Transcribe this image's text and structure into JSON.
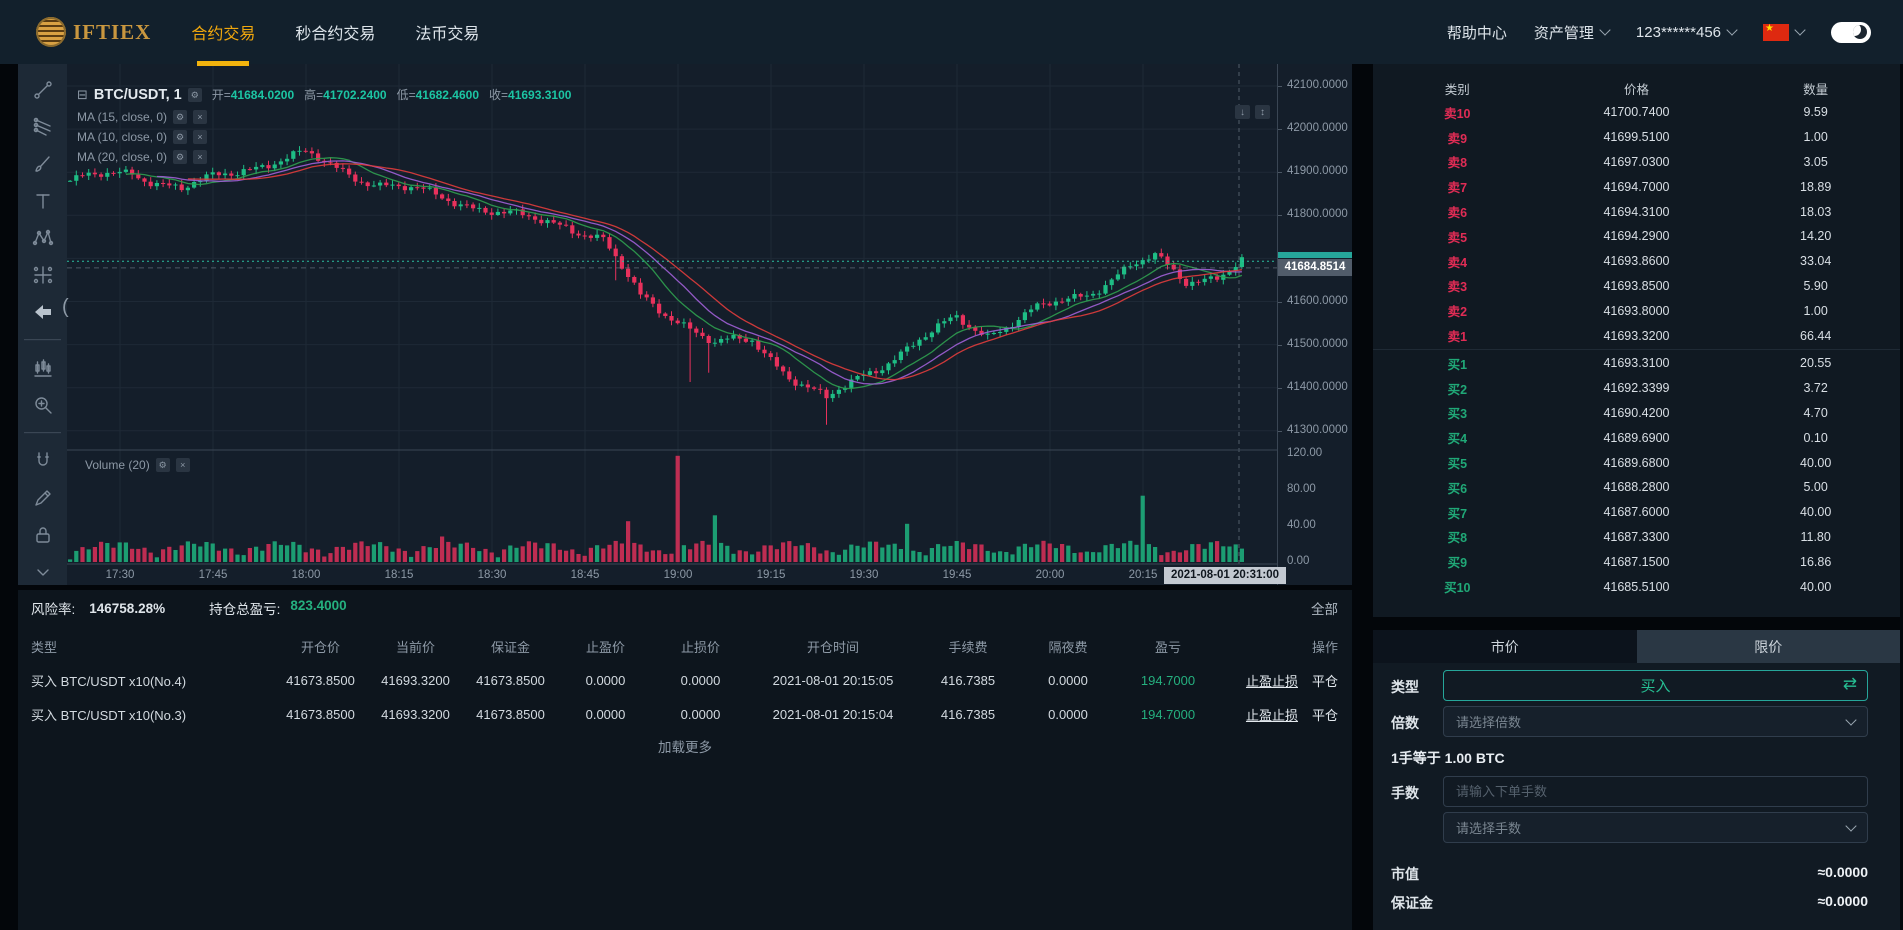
{
  "navbar": {
    "logo_text": "IFTIEX",
    "menu": [
      {
        "label": "合约交易",
        "active": true
      },
      {
        "label": "秒合约交易",
        "active": false
      },
      {
        "label": "法币交易",
        "active": false
      }
    ],
    "help": "帮助中心",
    "assets": "资产管理",
    "account": "123******456",
    "accent_color": "#f0a70d"
  },
  "toolbar": {
    "icons": [
      {
        "icon": "trend-line",
        "divider": false
      },
      {
        "icon": "gann-fib",
        "divider": false
      },
      {
        "icon": "brush",
        "divider": false
      },
      {
        "icon": "text-tool",
        "divider": false
      },
      {
        "icon": "xabcd-pattern",
        "divider": false
      },
      {
        "icon": "forecast",
        "divider": false
      },
      {
        "icon": "arrow-left",
        "active": true,
        "divider": true
      },
      {
        "icon": "bar-pattern",
        "divider": false
      },
      {
        "icon": "zoom-in",
        "divider": true
      },
      {
        "icon": "magnet",
        "divider": false
      },
      {
        "icon": "pencil",
        "divider": false
      },
      {
        "icon": "lock",
        "divider": false
      },
      {
        "icon": "chevron-down",
        "divider": false
      }
    ]
  },
  "chart": {
    "collapse_glyph": "⊟",
    "symbol_title": "BTC/USDT, 1",
    "ohlc": [
      {
        "label": "开=",
        "value": "41684.0200"
      },
      {
        "label": "高=",
        "value": "41702.2400"
      },
      {
        "label": "低=",
        "value": "41682.4600"
      },
      {
        "label": "收=",
        "value": "41693.3100"
      }
    ],
    "indicators": [
      "MA (15, close, 0)",
      "MA (10, close, 0)",
      "MA (20, close, 0)"
    ],
    "volume_label": "Volume (20)",
    "price_axis": [
      "42100.0000",
      "42000.0000",
      "41900.0000",
      "41800.0000",
      "41600.0000",
      "41500.0000",
      "41400.0000",
      "41300.0000"
    ],
    "price_tag": "41684.8514",
    "volume_axis": [
      "120.00",
      "80.00",
      "40.00",
      "0.00"
    ],
    "time_axis": [
      "17:30",
      "17:45",
      "18:00",
      "18:15",
      "18:30",
      "18:45",
      "19:00",
      "19:15",
      "19:30",
      "19:45",
      "20:00",
      "20:15"
    ],
    "time_tag": "2021-08-01 20:31:00"
  },
  "chart_data": {
    "type": "candlestick",
    "symbol": "BTC/USDT",
    "interval_minutes": 1,
    "visible_range": [
      "17:22",
      "20:40"
    ],
    "ohlc_current": {
      "open": 41684.02,
      "high": 41702.24,
      "low": 41682.46,
      "close": 41693.31
    },
    "last_price": 41684.8514,
    "close_line_price": 41693.31,
    "price_axis_ticks": [
      42100,
      42000,
      41900,
      41800,
      41700,
      41600,
      41500,
      41400,
      41300
    ],
    "volume_axis_ticks": [
      120,
      80,
      40,
      0
    ],
    "up_color": "#1ebd85",
    "down_color": "#e8315c",
    "ma": [
      {
        "period": 10,
        "color": "#2f9e4f"
      },
      {
        "period": 15,
        "color": "#a05fd6"
      },
      {
        "period": 20,
        "color": "#e03c3c"
      }
    ],
    "candle_count": 190,
    "price_waypoints": [
      [
        0,
        41880
      ],
      [
        10,
        41900
      ],
      [
        18,
        41860
      ],
      [
        28,
        41910
      ],
      [
        38,
        41940
      ],
      [
        50,
        41870
      ],
      [
        60,
        41845
      ],
      [
        70,
        41800
      ],
      [
        80,
        41780
      ],
      [
        86,
        41740
      ],
      [
        92,
        41610
      ],
      [
        98,
        41560
      ],
      [
        104,
        41500
      ],
      [
        110,
        41510
      ],
      [
        116,
        41430
      ],
      [
        122,
        41370
      ],
      [
        128,
        41430
      ],
      [
        136,
        41500
      ],
      [
        143,
        41560
      ],
      [
        148,
        41525
      ],
      [
        156,
        41580
      ],
      [
        164,
        41620
      ],
      [
        171,
        41680
      ],
      [
        175,
        41700
      ],
      [
        180,
        41650
      ],
      [
        185,
        41660
      ],
      [
        189,
        41690
      ]
    ],
    "long_wicks": {
      "88": 45,
      "100": 120,
      "103": 60,
      "122": 55
    },
    "volume_spikes": {
      "60": 30,
      "90": 48,
      "98": 125,
      "104": 55,
      "135": 45,
      "173": 78
    }
  },
  "orderbook": {
    "headers": [
      "类别",
      "价格",
      "数量"
    ],
    "asks": [
      {
        "level": "卖10",
        "price": "41700.7400",
        "amount": "9.59"
      },
      {
        "level": "卖9",
        "price": "41699.5100",
        "amount": "1.00"
      },
      {
        "level": "卖8",
        "price": "41697.0300",
        "amount": "3.05"
      },
      {
        "level": "卖7",
        "price": "41694.7000",
        "amount": "18.89"
      },
      {
        "level": "卖6",
        "price": "41694.3100",
        "amount": "18.03"
      },
      {
        "level": "卖5",
        "price": "41694.2900",
        "amount": "14.20"
      },
      {
        "level": "卖4",
        "price": "41693.8600",
        "amount": "33.04"
      },
      {
        "level": "卖3",
        "price": "41693.8500",
        "amount": "5.90"
      },
      {
        "level": "卖2",
        "price": "41693.8000",
        "amount": "1.00"
      },
      {
        "level": "卖1",
        "price": "41693.3200",
        "amount": "66.44"
      }
    ],
    "bids": [
      {
        "level": "买1",
        "price": "41693.3100",
        "amount": "20.55"
      },
      {
        "level": "买2",
        "price": "41692.3399",
        "amount": "3.72"
      },
      {
        "level": "买3",
        "price": "41690.4200",
        "amount": "4.70"
      },
      {
        "level": "买4",
        "price": "41689.6900",
        "amount": "0.10"
      },
      {
        "level": "买5",
        "price": "41689.6800",
        "amount": "40.00"
      },
      {
        "level": "买6",
        "price": "41688.2800",
        "amount": "5.00"
      },
      {
        "level": "买7",
        "price": "41687.6000",
        "amount": "40.00"
      },
      {
        "level": "买8",
        "price": "41687.3300",
        "amount": "11.80"
      },
      {
        "level": "买9",
        "price": "41687.1500",
        "amount": "16.86"
      },
      {
        "level": "买10",
        "price": "41685.5100",
        "amount": "40.00"
      }
    ]
  },
  "positions": {
    "risk_label": "风险率:",
    "risk_value": "146758.28%",
    "pnl_label": "持仓总盈亏:",
    "pnl_value": "823.4000",
    "filter_all": "全部",
    "headers": [
      "类型",
      "开仓价",
      "当前价",
      "保证金",
      "止盈价",
      "止损价",
      "开仓时间",
      "手续费",
      "隔夜费",
      "盈亏",
      "操作"
    ],
    "rows": [
      {
        "type": "买入 BTC/USDT x10(No.4)",
        "open": "41673.8500",
        "current": "41693.3200",
        "margin": "41673.8500",
        "tp": "0.0000",
        "sl": "0.0000",
        "time": "2021-08-01 20:15:05",
        "fee": "416.7385",
        "overnight": "0.0000",
        "pnl": "194.7000",
        "action_tpsl": "止盈止损",
        "action_close": "平仓"
      },
      {
        "type": "买入 BTC/USDT x10(No.3)",
        "open": "41673.8500",
        "current": "41693.3200",
        "margin": "41673.8500",
        "tp": "0.0000",
        "sl": "0.0000",
        "time": "2021-08-01 20:15:04",
        "fee": "416.7385",
        "overnight": "0.0000",
        "pnl": "194.7000",
        "action_tpsl": "止盈止损",
        "action_close": "平仓"
      }
    ],
    "load_more": "加载更多"
  },
  "trade": {
    "tabs": [
      {
        "label": "市价",
        "active": false
      },
      {
        "label": "限价",
        "active": true
      }
    ],
    "type_label": "类型",
    "side_button": "买入",
    "swap_glyph": "⇄",
    "leverage_label": "倍数",
    "leverage_placeholder": "请选择倍数",
    "unit_text": "1手等于 1.00 BTC",
    "lots_label": "手数",
    "lots_placeholder": "请输入下单手数",
    "lots_select_placeholder": "请选择手数",
    "market_value_label": "市值",
    "market_value": "≈0.0000",
    "margin_label": "保证金",
    "margin_value": "≈0.0000"
  }
}
